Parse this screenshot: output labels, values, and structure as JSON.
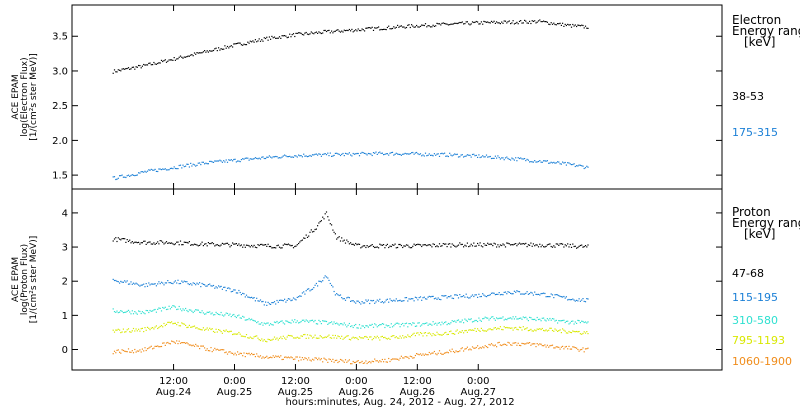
{
  "chart_data": [
    {
      "type": "scatter",
      "ylabel_lines": [
        "ACE EPAM",
        "log(Electron Flux)",
        "[1/(cm²s ster MeV)]"
      ],
      "legend_title_lines": [
        "Electron",
        "Energy ranges",
        "[keV]"
      ],
      "ylim": [
        1.3,
        3.95
      ],
      "yticks": [
        1.5,
        2.0,
        2.5,
        3.0,
        3.5
      ],
      "ytick_labels": [
        "1.5",
        "2.0",
        "2.5",
        "3.0",
        "3.5"
      ],
      "series": [
        {
          "name": "38-53",
          "color": "#000000",
          "x_hours": [
            0,
            6,
            12,
            18,
            24,
            30,
            36,
            42,
            48,
            54,
            60,
            66,
            72,
            78,
            84,
            90,
            93.5
          ],
          "values": [
            3.0,
            3.08,
            3.18,
            3.28,
            3.38,
            3.47,
            3.53,
            3.57,
            3.6,
            3.63,
            3.66,
            3.68,
            3.7,
            3.71,
            3.72,
            3.66,
            3.64
          ]
        },
        {
          "name": "175-315",
          "color": "#1a7fd6",
          "x_hours": [
            0,
            6,
            12,
            18,
            24,
            30,
            36,
            42,
            48,
            54,
            60,
            66,
            72,
            78,
            84,
            90,
            93.5
          ],
          "values": [
            1.46,
            1.55,
            1.62,
            1.68,
            1.72,
            1.76,
            1.79,
            1.8,
            1.81,
            1.82,
            1.81,
            1.8,
            1.78,
            1.75,
            1.71,
            1.66,
            1.62
          ]
        }
      ]
    },
    {
      "type": "scatter",
      "ylabel_lines": [
        "ACE EPAM",
        "log(Proton Flux)",
        "[1/(cm²s ster MeV)]"
      ],
      "legend_title_lines": [
        "Proton",
        "Energy ranges",
        "[keV]"
      ],
      "ylim": [
        -0.6,
        4.7
      ],
      "yticks": [
        0,
        1,
        2,
        3,
        4
      ],
      "ytick_labels": [
        "0",
        "1",
        "2",
        "3",
        "4"
      ],
      "series": [
        {
          "name": "47-68",
          "color": "#000000",
          "x_hours": [
            0,
            6,
            12,
            18,
            24,
            30,
            36,
            40,
            42,
            44,
            48,
            54,
            60,
            66,
            72,
            78,
            84,
            90,
            93.5
          ],
          "values": [
            3.25,
            3.15,
            3.15,
            3.1,
            3.08,
            3.05,
            3.05,
            3.6,
            4.0,
            3.3,
            3.05,
            3.05,
            3.05,
            3.08,
            3.08,
            3.08,
            3.08,
            3.05,
            3.02
          ]
        },
        {
          "name": "115-195",
          "color": "#1a7fd6",
          "x_hours": [
            0,
            6,
            12,
            18,
            24,
            30,
            36,
            40,
            42,
            44,
            48,
            54,
            60,
            66,
            72,
            78,
            84,
            90,
            93.5
          ],
          "values": [
            2.05,
            1.9,
            2.0,
            1.9,
            1.75,
            1.35,
            1.5,
            1.9,
            2.2,
            1.6,
            1.4,
            1.45,
            1.5,
            1.55,
            1.6,
            1.7,
            1.65,
            1.5,
            1.45
          ]
        },
        {
          "name": "310-580",
          "color": "#2ee0d0",
          "x_hours": [
            0,
            6,
            12,
            18,
            24,
            30,
            36,
            42,
            48,
            54,
            60,
            66,
            72,
            78,
            84,
            90,
            93.5
          ],
          "values": [
            1.15,
            1.1,
            1.25,
            1.1,
            1.0,
            0.75,
            0.85,
            0.8,
            0.7,
            0.72,
            0.75,
            0.8,
            0.9,
            0.95,
            0.9,
            0.82,
            0.8
          ]
        },
        {
          "name": "795-1193",
          "color": "#d8e800",
          "x_hours": [
            0,
            6,
            12,
            18,
            24,
            30,
            36,
            42,
            48,
            54,
            60,
            66,
            72,
            78,
            84,
            90,
            93.5
          ],
          "values": [
            0.55,
            0.6,
            0.8,
            0.6,
            0.5,
            0.3,
            0.4,
            0.4,
            0.35,
            0.35,
            0.45,
            0.5,
            0.6,
            0.65,
            0.6,
            0.55,
            0.5
          ]
        },
        {
          "name": "1060-1900",
          "color": "#f08c1a",
          "x_hours": [
            0,
            6,
            12,
            18,
            24,
            30,
            36,
            42,
            48,
            54,
            60,
            66,
            72,
            78,
            84,
            90,
            93.5
          ],
          "values": [
            -0.05,
            0.0,
            0.25,
            0.05,
            -0.1,
            -0.2,
            -0.25,
            -0.3,
            -0.35,
            -0.3,
            -0.15,
            -0.05,
            0.1,
            0.2,
            0.15,
            0.05,
            0.0
          ]
        }
      ]
    }
  ],
  "x_axis": {
    "ticks": [
      {
        "hours": 12,
        "time": "12:00",
        "date": "Aug.24"
      },
      {
        "hours": 24,
        "time": "0:00",
        "date": "Aug.25"
      },
      {
        "hours": 36,
        "time": "12:00",
        "date": "Aug.25"
      },
      {
        "hours": 48,
        "time": "0:00",
        "date": "Aug.26"
      },
      {
        "hours": 60,
        "time": "12:00",
        "date": "Aug.26"
      },
      {
        "hours": 72,
        "time": "0:00",
        "date": "Aug.27"
      }
    ],
    "title": "hours:minutes, Aug. 24, 2012 - Aug. 27, 2012"
  }
}
